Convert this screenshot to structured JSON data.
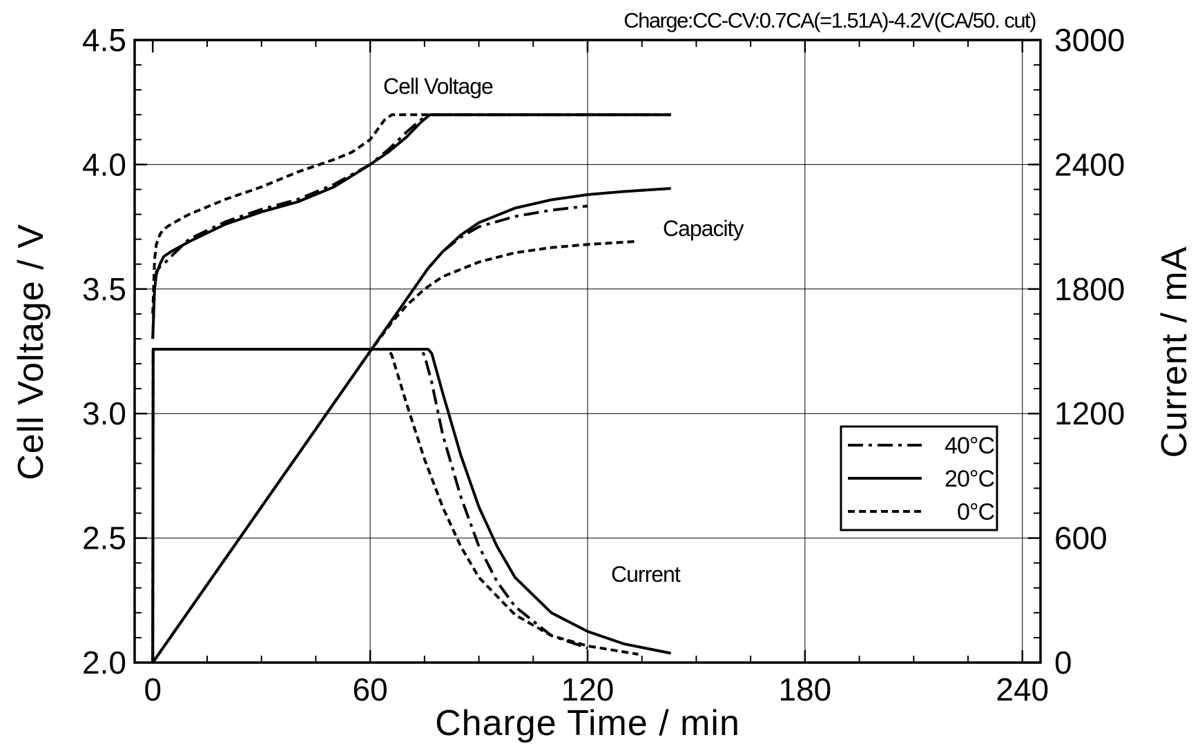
{
  "chart_data": {
    "type": "line",
    "title": "Charge:CC-CV:0.7CA(=1.51A)-4.2V(CA/50. cut)",
    "xlabel": "Charge  Time  /  min",
    "ylabel": "Cell  Voltage  /  V",
    "y2label": "Current  /  mA",
    "xlim": [
      -5,
      245
    ],
    "ylim": [
      2.0,
      4.5
    ],
    "y2lim": [
      0,
      3000
    ],
    "x_ticks": [
      0,
      60,
      120,
      180,
      240
    ],
    "x_tick_labels": [
      "0",
      "60",
      "120",
      "180",
      "240"
    ],
    "y_ticks": [
      2.0,
      2.5,
      3.0,
      3.5,
      4.0,
      4.5
    ],
    "y_tick_labels": [
      "2.0",
      "2.5",
      "3.0",
      "3.5",
      "4.0",
      "4.5"
    ],
    "y2_ticks": [
      0,
      600,
      1200,
      1800,
      2400,
      3000
    ],
    "y2_tick_labels": [
      "0",
      "600",
      "1200",
      "1800",
      "2400",
      "3000"
    ],
    "grid": true,
    "legend_position": "lower-right",
    "legend": [
      {
        "label": "40°C",
        "style": "dashdot"
      },
      {
        "label": "20°C",
        "style": "solid"
      },
      {
        "label": "0°C",
        "style": "dashed"
      }
    ],
    "annotations": [
      {
        "text": "Cell  Voltage",
        "x": 63,
        "y": 4.3
      },
      {
        "text": "Capacity",
        "x": 141,
        "y": 3.73
      },
      {
        "text": "Current",
        "x": 127,
        "y": 2.34
      }
    ],
    "series": [
      {
        "group": "Cell Voltage",
        "temp": "40°C",
        "style": "dashdot",
        "axis": "left",
        "x": [
          0,
          0.5,
          1,
          2,
          3,
          5,
          10,
          20,
          30,
          40,
          50,
          60,
          65,
          70,
          74,
          76.5,
          100,
          120,
          143
        ],
        "y": [
          3.3,
          3.52,
          3.57,
          3.59,
          3.6,
          3.63,
          3.7,
          3.77,
          3.82,
          3.86,
          3.92,
          4.0,
          4.06,
          4.13,
          4.18,
          4.2,
          4.2,
          4.2,
          4.2
        ]
      },
      {
        "group": "Cell Voltage",
        "temp": "20°C",
        "style": "solid",
        "axis": "left",
        "x": [
          0,
          0.5,
          1,
          2,
          3,
          5,
          10,
          20,
          30,
          40,
          50,
          60,
          65,
          70,
          74,
          76.5,
          100,
          120,
          143
        ],
        "y": [
          3.3,
          3.5,
          3.56,
          3.6,
          3.63,
          3.65,
          3.69,
          3.76,
          3.81,
          3.85,
          3.91,
          4.0,
          4.05,
          4.11,
          4.17,
          4.2,
          4.2,
          4.2,
          4.2
        ]
      },
      {
        "group": "Cell Voltage",
        "temp": "0°C",
        "style": "dashed",
        "axis": "left",
        "x": [
          0,
          0.5,
          1,
          2,
          3,
          5,
          10,
          20,
          30,
          40,
          50,
          55,
          60,
          64,
          66,
          70,
          76,
          100,
          120,
          143
        ],
        "y": [
          3.4,
          3.62,
          3.68,
          3.72,
          3.74,
          3.76,
          3.8,
          3.86,
          3.91,
          3.97,
          4.02,
          4.05,
          4.1,
          4.18,
          4.2,
          4.2,
          4.2,
          4.2,
          4.2,
          4.2
        ]
      },
      {
        "group": "Capacity",
        "temp": "40°C",
        "style": "dashdot",
        "axis": "right",
        "x": [
          0,
          60,
          76,
          80,
          85,
          90,
          100,
          110,
          120
        ],
        "y": [
          0,
          1500,
          1900,
          1980,
          2050,
          2100,
          2150,
          2180,
          2200
        ]
      },
      {
        "group": "Capacity",
        "temp": "20°C",
        "style": "solid",
        "axis": "right",
        "x": [
          0,
          60,
          76,
          80,
          85,
          90,
          100,
          110,
          120,
          130,
          143
        ],
        "y": [
          0,
          1500,
          1900,
          1980,
          2060,
          2120,
          2190,
          2230,
          2255,
          2270,
          2285
        ]
      },
      {
        "group": "Capacity",
        "temp": "0°C",
        "style": "dashed",
        "axis": "right",
        "x": [
          0,
          60,
          66,
          70,
          75,
          80,
          90,
          100,
          110,
          120,
          134
        ],
        "y": [
          0,
          1500,
          1640,
          1720,
          1800,
          1860,
          1930,
          1975,
          2000,
          2015,
          2030
        ]
      },
      {
        "group": "Current",
        "temp": "40°C",
        "style": "dashdot",
        "axis": "right",
        "x": [
          0,
          0.1,
          74,
          75,
          77,
          80,
          85,
          90,
          95,
          100,
          110,
          120
        ],
        "y": [
          0,
          1510,
          1510,
          1480,
          1350,
          1100,
          800,
          560,
          390,
          270,
          130,
          70
        ]
      },
      {
        "group": "Current",
        "temp": "20°C",
        "style": "solid",
        "axis": "right",
        "x": [
          0,
          0.1,
          76,
          77,
          80,
          85,
          90,
          95,
          100,
          110,
          120,
          130,
          143
        ],
        "y": [
          0,
          1510,
          1510,
          1490,
          1300,
          1000,
          750,
          560,
          410,
          240,
          150,
          90,
          45
        ]
      },
      {
        "group": "Current",
        "temp": "0°C",
        "style": "dashed",
        "axis": "right",
        "x": [
          0,
          0.1,
          65,
          66,
          70,
          75,
          80,
          85,
          90,
          100,
          110,
          120,
          134
        ],
        "y": [
          0,
          1510,
          1510,
          1480,
          1250,
          980,
          750,
          560,
          410,
          230,
          130,
          80,
          40
        ]
      }
    ]
  }
}
